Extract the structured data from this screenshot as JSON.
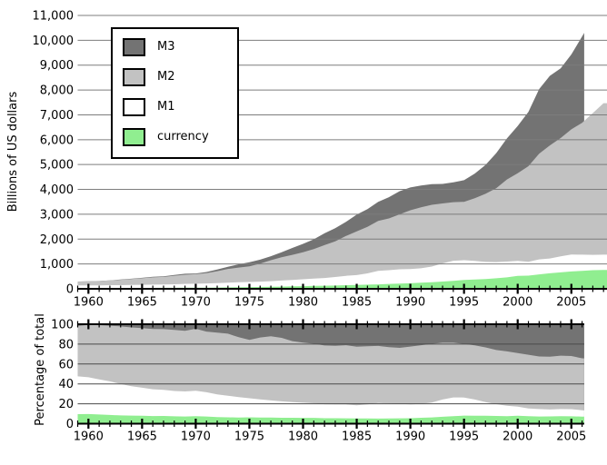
{
  "figure": {
    "background": "#ffffff",
    "axis_color": "#000000",
    "grid_color_top": "#7d7d7d",
    "grid_color_bottom": "#4a4a4a"
  },
  "chart_data": [
    {
      "type": "area",
      "title": "",
      "xlabel": "",
      "ylabel": "Billions of US dollars",
      "ylim": [
        0,
        11000
      ],
      "xlim": [
        1959,
        2008.3
      ],
      "grid": true,
      "legend_position": "upper left",
      "y_ticks": [
        {
          "value": 0,
          "label": "0"
        },
        {
          "value": 1000,
          "label": "1,000"
        },
        {
          "value": 2000,
          "label": "2,000"
        },
        {
          "value": 3000,
          "label": "3,000"
        },
        {
          "value": 4000,
          "label": "4,000"
        },
        {
          "value": 5000,
          "label": "5,000"
        },
        {
          "value": 6000,
          "label": "6,000"
        },
        {
          "value": 7000,
          "label": "7,000"
        },
        {
          "value": 8000,
          "label": "8,000"
        },
        {
          "value": 9000,
          "label": "9,000"
        },
        {
          "value": 10000,
          "label": "10,000"
        },
        {
          "value": 11000,
          "label": "11,000"
        }
      ],
      "x_ticks": [
        {
          "value": 1960,
          "label": "1960"
        },
        {
          "value": 1965,
          "label": "1965"
        },
        {
          "value": 1970,
          "label": "1970"
        },
        {
          "value": 1975,
          "label": "1975"
        },
        {
          "value": 1980,
          "label": "1980"
        },
        {
          "value": 1985,
          "label": "1985"
        },
        {
          "value": 1990,
          "label": "1990"
        },
        {
          "value": 1995,
          "label": "1995"
        },
        {
          "value": 2000,
          "label": "2000"
        },
        {
          "value": 2005,
          "label": "2005"
        }
      ],
      "x_minor_tick_interval_years": 1,
      "years": [
        1959,
        1960,
        1961,
        1962,
        1963,
        1964,
        1965,
        1966,
        1967,
        1968,
        1969,
        1970,
        1971,
        1972,
        1973,
        1974,
        1975,
        1976,
        1977,
        1978,
        1979,
        1980,
        1981,
        1982,
        1983,
        1984,
        1985,
        1986,
        1987,
        1988,
        1989,
        1990,
        1991,
        1992,
        1993,
        1994,
        1995,
        1996,
        1997,
        1998,
        1999,
        2000,
        2001,
        2002,
        2003,
        2004,
        2005,
        2006,
        2007,
        2008
      ],
      "series": [
        {
          "name": "M3",
          "color": "#737373",
          "values": [
            292,
            300,
            315,
            341,
            371,
            406,
            442,
            482,
            505,
            557,
            607,
            616,
            677,
            776,
            886,
            985,
            1070,
            1172,
            1311,
            1472,
            1646,
            1808,
            1990,
            2234,
            2441,
            2697,
            2990,
            3208,
            3499,
            3686,
            3929,
            4077,
            4155,
            4210,
            4222,
            4286,
            4370,
            4636,
            4986,
            5461,
            6052,
            6552,
            7118,
            8035,
            8568,
            8872,
            9433,
            10154
          ],
          "end": {
            "x": 2006.2,
            "value": 10299
          }
        },
        {
          "name": "M2",
          "color": "#c2c2c2",
          "values": [
            287,
            298,
            312,
            336,
            363,
            393,
            425,
            459,
            480,
            525,
            567,
            588,
            627,
            710,
            802,
            856,
            902,
            1016,
            1152,
            1271,
            1366,
            1474,
            1600,
            1756,
            1911,
            2128,
            2313,
            2497,
            2734,
            2833,
            2997,
            3160,
            3279,
            3379,
            3434,
            3487,
            3502,
            3649,
            3824,
            4046,
            4401,
            4648,
            4933,
            5433,
            5772,
            6066,
            6417,
            6680,
            7070,
            7470
          ]
        },
        {
          "name": "M1",
          "color": "#ffffff",
          "values": [
            139,
            140,
            140,
            145,
            148,
            153,
            160,
            167,
            172,
            183,
            197,
            204,
            214,
            228,
            249,
            263,
            274,
            287,
            306,
            331,
            358,
            382,
            409,
            436,
            475,
            521,
            552,
            620,
            724,
            750,
            787,
            794,
            825,
            897,
            1025,
            1130,
            1150,
            1127,
            1081,
            1073,
            1096,
            1123,
            1088,
            1183,
            1220,
            1306,
            1376,
            1375,
            1367,
            1374
          ]
        },
        {
          "name": "currency",
          "color": "#90ee90",
          "values": [
            28,
            29,
            29,
            30,
            31,
            33,
            35,
            37,
            39,
            41,
            44,
            46,
            49,
            52,
            57,
            61,
            68,
            73,
            80,
            88,
            97,
            106,
            116,
            123,
            133,
            146,
            156,
            168,
            180,
            196,
            212,
            222,
            247,
            267,
            292,
            322,
            354,
            372,
            394,
            425,
            460,
            518,
            531,
            581,
            626,
            662,
            697,
            724,
            750,
            760
          ]
        }
      ]
    },
    {
      "type": "area",
      "title": "",
      "xlabel": "",
      "ylabel": "Percentage of total",
      "ylim": [
        0,
        100
      ],
      "xlim": [
        1959,
        2006.4
      ],
      "grid": true,
      "y_ticks": [
        {
          "value": 0,
          "label": "0"
        },
        {
          "value": 20,
          "label": "20"
        },
        {
          "value": 40,
          "label": "40"
        },
        {
          "value": 60,
          "label": "60"
        },
        {
          "value": 80,
          "label": "80"
        },
        {
          "value": 100,
          "label": "100"
        }
      ],
      "x_ticks": [
        {
          "value": 1960,
          "label": "1960"
        },
        {
          "value": 1965,
          "label": "1965"
        },
        {
          "value": 1970,
          "label": "1970"
        },
        {
          "value": 1975,
          "label": "1975"
        },
        {
          "value": 1980,
          "label": "1980"
        },
        {
          "value": 1985,
          "label": "1985"
        },
        {
          "value": 1990,
          "label": "1990"
        },
        {
          "value": 1995,
          "label": "1995"
        },
        {
          "value": 2000,
          "label": "2000"
        },
        {
          "value": 2005,
          "label": "2005"
        }
      ],
      "x_minor_tick_interval_years": 1,
      "derived_series": {
        "description": "Each aggregate of the top chart expressed as a percent of total M3 (M3 band fills to 100). Data span 1959 to early 2006, when M3 reporting ended.",
        "denominator": "M3"
      }
    }
  ]
}
